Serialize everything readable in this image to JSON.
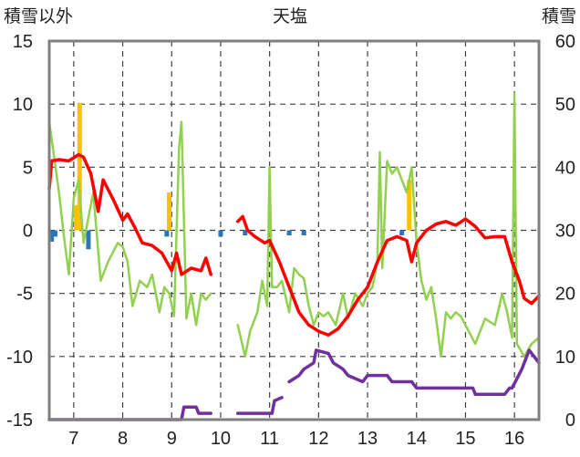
{
  "chart_data": {
    "type": "line",
    "title": "天塩",
    "left_axis_label": "積雪以外",
    "right_axis_label": "積雪",
    "ylim_left": [
      -15,
      15
    ],
    "ylim_right": [
      0,
      60
    ],
    "xlim": [
      6.5,
      16.5
    ],
    "left_ticks": [
      "15",
      "10",
      "5",
      "0",
      "-5",
      "-10",
      "-15"
    ],
    "right_ticks": [
      "60",
      "50",
      "40",
      "30",
      "20",
      "10",
      "0"
    ],
    "x_ticks": [
      "7",
      "8",
      "9",
      "10",
      "11",
      "12",
      "13",
      "14",
      "15",
      "16"
    ],
    "grid": "dashed",
    "colors": {
      "temperature": "#ff0000",
      "humidity_like": "#92d050",
      "snow_depth": "#7030a0",
      "precip_yellow": "#ffc000",
      "precip_blue": "#2e75b6"
    },
    "series": [
      {
        "axis": "left",
        "color": "#ff0000",
        "x": [
          6.5,
          6.55,
          6.7,
          6.9,
          7.1,
          7.2,
          7.35,
          7.5,
          7.6,
          7.8,
          8.0,
          8.1,
          8.25,
          8.4,
          8.6,
          8.8,
          9.0,
          9.1,
          9.2,
          9.4,
          9.6,
          9.7,
          9.8,
          null,
          10.35,
          10.45,
          10.55,
          10.7,
          10.9,
          11.0,
          11.2,
          11.4,
          11.6,
          11.8,
          12.0,
          12.2,
          12.4,
          12.6,
          12.8,
          13.0,
          13.2,
          13.4,
          13.6,
          13.8,
          13.9,
          14.0,
          14.2,
          14.4,
          14.6,
          14.8,
          15.0,
          15.2,
          15.4,
          15.6,
          15.8,
          15.95,
          16.1,
          16.2,
          16.35,
          16.5
        ],
        "y": [
          3.3,
          5.5,
          5.6,
          5.5,
          6.0,
          5.8,
          4.5,
          1.5,
          4.0,
          2.5,
          0.8,
          1.3,
          0.2,
          -1.0,
          -1.2,
          -1.8,
          -3.2,
          -1.8,
          -3.5,
          -3.0,
          -3.2,
          -2.2,
          -3.5,
          null,
          0.7,
          1.1,
          0.0,
          -0.5,
          -1.0,
          -0.8,
          -2.5,
          -4.5,
          -6.5,
          -7.5,
          -8.0,
          -8.3,
          -7.8,
          -6.8,
          -5.5,
          -4.5,
          -2.5,
          -0.8,
          -0.5,
          -0.8,
          -2.5,
          -1.0,
          0.0,
          0.5,
          0.7,
          0.4,
          0.9,
          0.3,
          -0.6,
          -0.5,
          -0.5,
          -2.5,
          -4.0,
          -5.4,
          -5.8,
          -5.2
        ]
      },
      {
        "axis": "left",
        "color": "#92d050",
        "x": [
          6.5,
          6.7,
          6.8,
          6.9,
          7.0,
          7.1,
          7.2,
          7.4,
          7.55,
          7.7,
          7.9,
          8.0,
          8.1,
          8.2,
          8.35,
          8.5,
          8.6,
          8.75,
          8.85,
          8.95,
          9.05,
          9.15,
          9.2,
          9.3,
          9.4,
          9.5,
          9.6,
          9.7,
          9.8,
          null,
          10.35,
          10.5,
          10.6,
          10.75,
          10.85,
          10.95,
          11.0,
          11.05,
          11.15,
          11.25,
          11.4,
          11.5,
          11.6,
          11.7,
          11.8,
          11.9,
          12.0,
          12.1,
          12.2,
          12.35,
          12.5,
          12.6,
          12.75,
          12.9,
          13.0,
          13.1,
          13.2,
          13.25,
          13.3,
          13.4,
          13.5,
          13.6,
          13.7,
          13.8,
          13.9,
          14.0,
          14.1,
          14.2,
          14.3,
          14.4,
          14.5,
          14.6,
          14.7,
          14.8,
          14.9,
          15.0,
          15.2,
          15.4,
          15.6,
          15.75,
          15.85,
          15.95,
          16.0,
          16.05,
          16.2,
          16.35,
          16.5
        ],
        "y": [
          8.6,
          3.0,
          -0.5,
          -3.5,
          2.5,
          4.0,
          -1.0,
          3.0,
          -4.0,
          -2.5,
          -1.0,
          -1.3,
          -2.5,
          -6.0,
          -4.0,
          -4.5,
          -3.5,
          -6.5,
          -4.5,
          -5.0,
          -6.8,
          6.5,
          8.6,
          -7.0,
          -5.0,
          -7.5,
          -5.0,
          -5.5,
          -5.0,
          null,
          -7.5,
          -10.0,
          -8.0,
          -6.5,
          -4.0,
          -6.0,
          5.0,
          -4.5,
          -4.5,
          -4.0,
          -6.5,
          -3.0,
          -3.5,
          -3.8,
          -6.0,
          -7.5,
          -6.5,
          -6.8,
          -6.5,
          -7.5,
          -5.0,
          -7.0,
          -5.0,
          -6.0,
          -5.0,
          -4.5,
          -2.5,
          6.2,
          -3.0,
          5.5,
          4.5,
          5.0,
          4.0,
          3.0,
          5.0,
          -1.0,
          -4.0,
          -5.5,
          -4.5,
          -7.0,
          -10.0,
          -6.5,
          -7.0,
          -6.5,
          -6.8,
          -7.5,
          -9.0,
          -7.0,
          -7.5,
          -5.0,
          -6.5,
          -8.5,
          10.8,
          -9.0,
          -10.0,
          -9.0,
          -8.5
        ]
      },
      {
        "axis": "right",
        "color": "#7030a0",
        "x": [
          6.5,
          9.2,
          9.25,
          9.5,
          9.55,
          9.8,
          null,
          10.35,
          11.05,
          11.1,
          11.25,
          null,
          11.4,
          11.6,
          11.7,
          11.9,
          11.95,
          12.2,
          12.3,
          12.5,
          12.6,
          12.9,
          13.0,
          13.4,
          13.5,
          13.9,
          14.0,
          15.15,
          15.2,
          15.8,
          15.9,
          15.95,
          16.15,
          16.3,
          16.4,
          16.5
        ],
        "y": [
          0,
          0,
          2,
          2,
          1,
          1,
          null,
          1,
          1,
          3,
          3.5,
          null,
          6,
          7,
          8,
          9,
          11,
          10.5,
          9,
          8,
          7,
          6,
          7,
          7,
          6,
          6,
          5,
          5,
          4,
          4,
          5,
          5,
          8,
          11,
          10,
          9
        ]
      }
    ],
    "bars": [
      {
        "axis": "left",
        "color": "#ffc000",
        "x": [
          7.05,
          7.12,
          8.95,
          13.85
        ],
        "y": [
          2.0,
          10.1,
          3.0,
          4.0
        ]
      },
      {
        "axis": "left",
        "color": "#2e75b6",
        "x": [
          6.55,
          6.62,
          7.3,
          8.9,
          10.0,
          10.5,
          11.4,
          11.7,
          13.7
        ],
        "y": [
          -0.9,
          -0.5,
          -1.5,
          -0.5,
          -0.5,
          -0.4,
          -0.4,
          -0.4,
          -0.4
        ]
      }
    ]
  }
}
